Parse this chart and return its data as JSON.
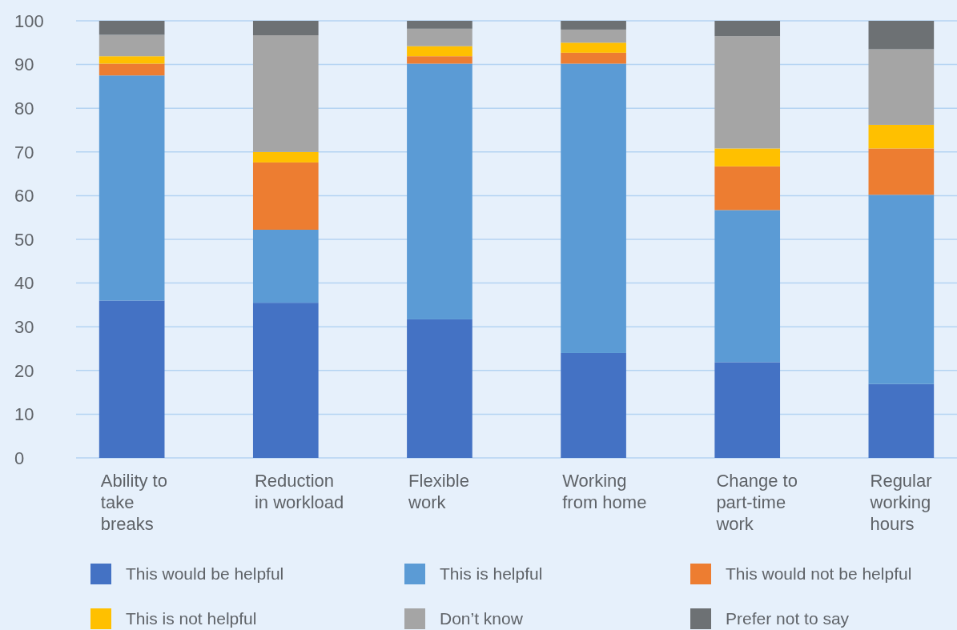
{
  "chart_data": {
    "type": "bar",
    "stacked": true,
    "categories": [
      "Ability to take breaks",
      "Reduction in workload",
      "Flexible work",
      "Working from home",
      "Change to part-time work",
      "Regular working hours"
    ],
    "series": [
      {
        "name": "This would be helpful",
        "color": "#4472c4",
        "values": [
          36.0,
          35.5,
          31.7,
          24.0,
          21.9,
          16.9
        ]
      },
      {
        "name": "This is helpful",
        "color": "#5b9bd5",
        "values": [
          51.5,
          16.7,
          58.5,
          66.2,
          34.8,
          43.3
        ]
      },
      {
        "name": "This would not be helpful",
        "color": "#ed7d31",
        "values": [
          2.7,
          15.4,
          1.7,
          2.5,
          10.0,
          10.6
        ]
      },
      {
        "name": "This is not helpful",
        "color": "#ffc000",
        "values": [
          1.7,
          2.4,
          2.3,
          2.3,
          4.1,
          5.4
        ]
      },
      {
        "name": "Don’t know",
        "color": "#a5a5a5",
        "values": [
          4.9,
          26.7,
          4.0,
          3.0,
          25.7,
          17.3
        ]
      },
      {
        "name": "Prefer not to say",
        "color": "#6d7174",
        "values": [
          3.2,
          3.3,
          1.8,
          2.0,
          3.5,
          6.5
        ]
      }
    ],
    "ylim": [
      0,
      100
    ],
    "yticks": [
      0,
      10,
      20,
      30,
      40,
      50,
      60,
      70,
      80,
      90,
      100
    ],
    "grid": "y",
    "legend": "bottom"
  }
}
